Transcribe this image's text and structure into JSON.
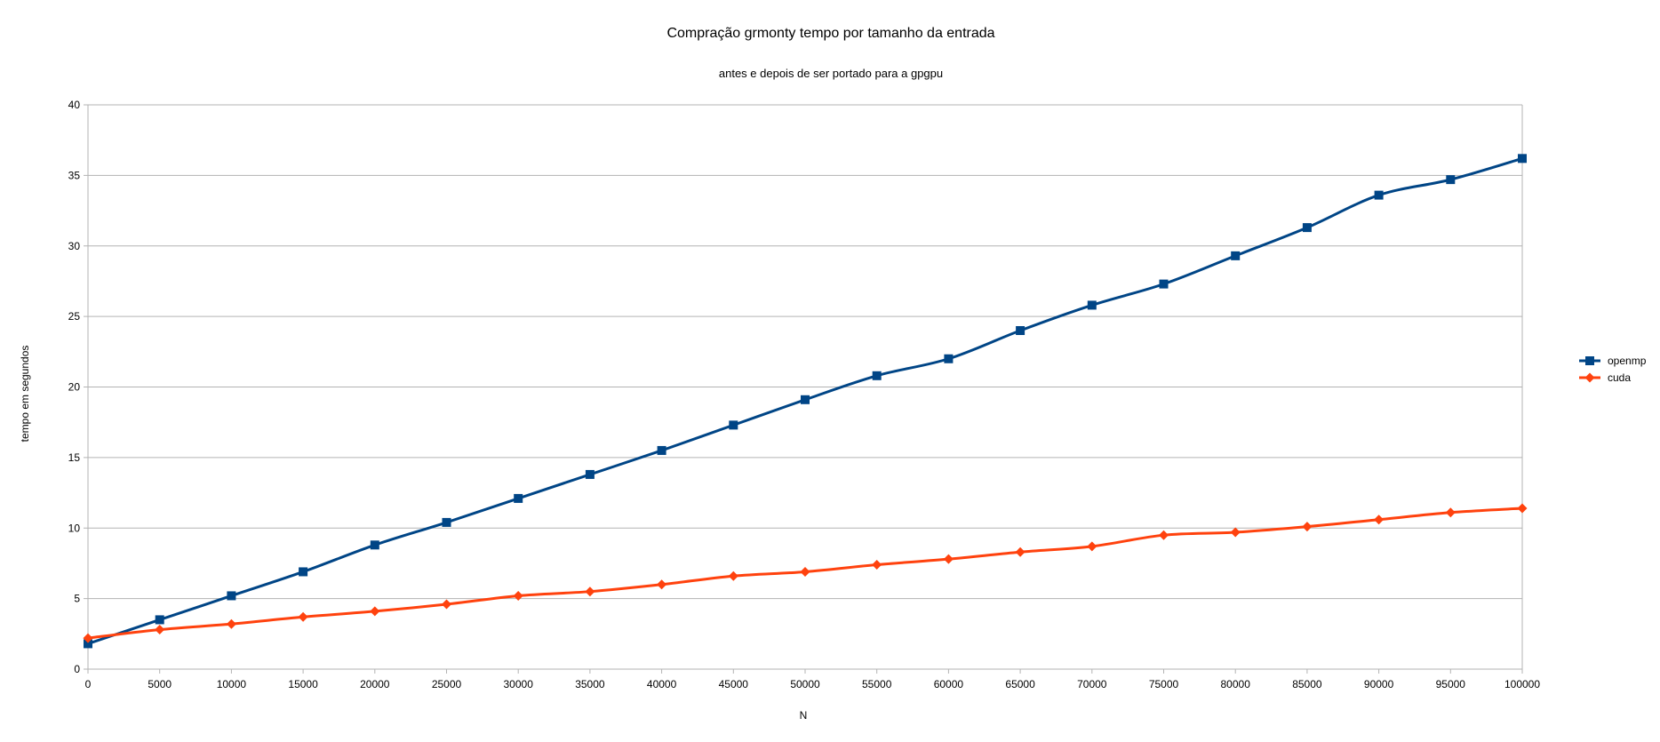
{
  "chart_data": {
    "type": "line",
    "title": "Compração grmonty tempo por tamanho da entrada",
    "subtitle": "antes e depois de ser portado para a gpgpu",
    "xlabel": "N",
    "ylabel": "tempo em segundos",
    "x": [
      0,
      5000,
      10000,
      15000,
      20000,
      25000,
      30000,
      35000,
      40000,
      45000,
      50000,
      55000,
      60000,
      65000,
      70000,
      75000,
      80000,
      85000,
      90000,
      95000,
      100000
    ],
    "xlim": [
      0,
      100000
    ],
    "ylim": [
      0,
      40
    ],
    "yticks": [
      0,
      5,
      10,
      15,
      20,
      25,
      30,
      35,
      40
    ],
    "grid": "horizontal",
    "legend_position": "right",
    "series": [
      {
        "name": "openmp",
        "color": "#004586",
        "marker": "square",
        "values": [
          1.8,
          3.5,
          5.2,
          6.9,
          8.8,
          10.4,
          12.1,
          13.8,
          15.5,
          17.3,
          19.1,
          20.8,
          22.0,
          24.0,
          25.8,
          27.3,
          29.3,
          31.3,
          33.6,
          34.7,
          36.2
        ]
      },
      {
        "name": "cuda",
        "color": "#ff420e",
        "marker": "diamond",
        "values": [
          2.2,
          2.8,
          3.2,
          3.7,
          4.1,
          4.6,
          5.2,
          5.5,
          6.0,
          6.6,
          6.9,
          7.4,
          7.8,
          8.3,
          8.7,
          9.5,
          9.7,
          10.1,
          10.6,
          11.1,
          11.4
        ]
      }
    ]
  }
}
